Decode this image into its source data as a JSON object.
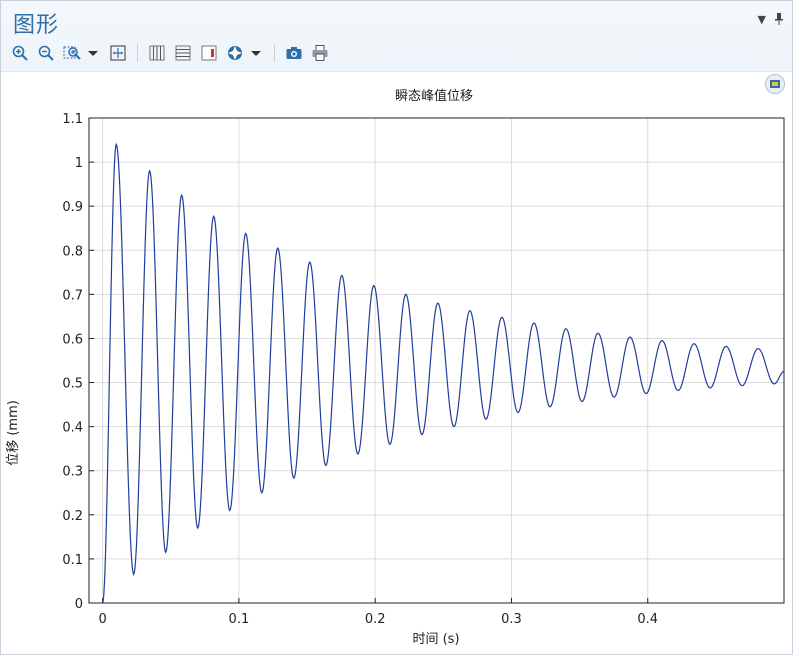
{
  "window": {
    "title": "图形"
  },
  "toolbar": {
    "buttons": [
      {
        "name": "zoom-in-icon"
      },
      {
        "name": "zoom-out-icon"
      },
      {
        "name": "zoom-box-icon"
      },
      {
        "name": "dropdown-arrow-icon"
      },
      {
        "name": "zoom-extents-icon"
      },
      {
        "name": "x-grid-icon"
      },
      {
        "name": "y-grid-icon"
      },
      {
        "name": "legend-icon"
      },
      {
        "name": "color-wheel-icon"
      },
      {
        "name": "dropdown-arrow-icon"
      },
      {
        "name": "camera-icon"
      },
      {
        "name": "print-icon"
      }
    ]
  },
  "chart_data": {
    "type": "line",
    "title": "瞬态峰值位移",
    "xlabel": "时间 (s)",
    "ylabel": "位移 (mm)",
    "xlim": [
      -0.01,
      0.5
    ],
    "ylim": [
      0,
      1.1
    ],
    "xticks": [
      0,
      0.1,
      0.2,
      0.3,
      0.4
    ],
    "xtick_labels": [
      "0",
      "0.1",
      "0.2",
      "0.3",
      "0.4"
    ],
    "yticks": [
      0,
      0.1,
      0.2,
      0.3,
      0.4,
      0.5,
      0.6,
      0.7,
      0.8,
      0.9,
      1,
      1.1
    ],
    "ytick_labels": [
      "0",
      "0.1",
      "0.2",
      "0.3",
      "0.4",
      "0.5",
      "0.6",
      "0.7",
      "0.8",
      "0.9",
      "1",
      "1.1"
    ],
    "grid": true,
    "series": [
      {
        "color": "#1f3f9a",
        "x": [
          0,
          0.01,
          0.0228,
          0.0345,
          0.0463,
          0.058,
          0.0698,
          0.0815,
          0.0933,
          0.105,
          0.1168,
          0.1285,
          0.1403,
          0.152,
          0.1638,
          0.1755,
          0.1873,
          0.199,
          0.2108,
          0.2225,
          0.2343,
          0.246,
          0.2578,
          0.2695,
          0.2813,
          0.293,
          0.3048,
          0.3165,
          0.3283,
          0.34,
          0.3518,
          0.3635,
          0.3753,
          0.387,
          0.3988,
          0.4105,
          0.4223,
          0.434,
          0.4458,
          0.4575,
          0.4693,
          0.481,
          0.4928,
          0.5
        ],
        "y": [
          0,
          1.04,
          0.065,
          0.98,
          0.115,
          0.925,
          0.17,
          0.877,
          0.21,
          0.838,
          0.25,
          0.805,
          0.283,
          0.773,
          0.312,
          0.743,
          0.338,
          0.72,
          0.36,
          0.7,
          0.382,
          0.68,
          0.4,
          0.663,
          0.417,
          0.648,
          0.432,
          0.635,
          0.445,
          0.622,
          0.457,
          0.612,
          0.467,
          0.603,
          0.475,
          0.595,
          0.482,
          0.588,
          0.488,
          0.582,
          0.493,
          0.577,
          0.497,
          0.525
        ]
      }
    ]
  }
}
